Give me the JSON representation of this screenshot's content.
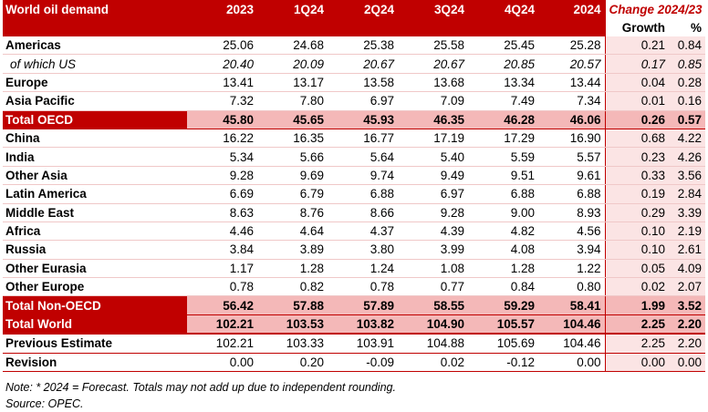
{
  "header": {
    "title": "World oil demand",
    "columns": [
      "2023",
      "1Q24",
      "2Q24",
      "3Q24",
      "4Q24",
      "2024"
    ],
    "change_title": "Change 2024/23",
    "change_sub": [
      "Growth",
      "%"
    ]
  },
  "rows": [
    {
      "label": "Americas",
      "values": [
        "25.06",
        "24.68",
        "25.38",
        "25.58",
        "25.45",
        "25.28"
      ],
      "growth": "0.21",
      "pct": "0.84"
    },
    {
      "label": "of which US",
      "values": [
        "20.40",
        "20.09",
        "20.67",
        "20.67",
        "20.85",
        "20.57"
      ],
      "growth": "0.17",
      "pct": "0.85"
    },
    {
      "label": "Europe",
      "values": [
        "13.41",
        "13.17",
        "13.58",
        "13.68",
        "13.34",
        "13.44"
      ],
      "growth": "0.04",
      "pct": "0.28"
    },
    {
      "label": "Asia Pacific",
      "values": [
        "7.32",
        "7.80",
        "6.97",
        "7.09",
        "7.49",
        "7.34"
      ],
      "growth": "0.01",
      "pct": "0.16"
    },
    {
      "label": "Total OECD",
      "values": [
        "45.80",
        "45.65",
        "45.93",
        "46.35",
        "46.28",
        "46.06"
      ],
      "growth": "0.26",
      "pct": "0.57"
    },
    {
      "label": "China",
      "values": [
        "16.22",
        "16.35",
        "16.77",
        "17.19",
        "17.29",
        "16.90"
      ],
      "growth": "0.68",
      "pct": "4.22"
    },
    {
      "label": "India",
      "values": [
        "5.34",
        "5.66",
        "5.64",
        "5.40",
        "5.59",
        "5.57"
      ],
      "growth": "0.23",
      "pct": "4.26"
    },
    {
      "label": "Other Asia",
      "values": [
        "9.28",
        "9.69",
        "9.74",
        "9.49",
        "9.51",
        "9.61"
      ],
      "growth": "0.33",
      "pct": "3.56"
    },
    {
      "label": "Latin America",
      "values": [
        "6.69",
        "6.79",
        "6.88",
        "6.97",
        "6.88",
        "6.88"
      ],
      "growth": "0.19",
      "pct": "2.84"
    },
    {
      "label": "Middle East",
      "values": [
        "8.63",
        "8.76",
        "8.66",
        "9.28",
        "9.00",
        "8.93"
      ],
      "growth": "0.29",
      "pct": "3.39"
    },
    {
      "label": "Africa",
      "values": [
        "4.46",
        "4.64",
        "4.37",
        "4.39",
        "4.82",
        "4.56"
      ],
      "growth": "0.10",
      "pct": "2.19"
    },
    {
      "label": "Russia",
      "values": [
        "3.84",
        "3.89",
        "3.80",
        "3.99",
        "4.08",
        "3.94"
      ],
      "growth": "0.10",
      "pct": "2.61"
    },
    {
      "label": "Other Eurasia",
      "values": [
        "1.17",
        "1.28",
        "1.24",
        "1.08",
        "1.28",
        "1.22"
      ],
      "growth": "0.05",
      "pct": "4.09"
    },
    {
      "label": "Other Europe",
      "values": [
        "0.78",
        "0.82",
        "0.78",
        "0.77",
        "0.84",
        "0.80"
      ],
      "growth": "0.02",
      "pct": "2.07"
    },
    {
      "label": "Total Non-OECD",
      "values": [
        "56.42",
        "57.88",
        "57.89",
        "58.55",
        "59.29",
        "58.41"
      ],
      "growth": "1.99",
      "pct": "3.52"
    },
    {
      "label": "Total World",
      "values": [
        "102.21",
        "103.53",
        "103.82",
        "104.90",
        "105.57",
        "104.46"
      ],
      "growth": "2.25",
      "pct": "2.20"
    },
    {
      "label": "Previous Estimate",
      "values": [
        "102.21",
        "103.33",
        "103.91",
        "104.88",
        "105.69",
        "104.46"
      ],
      "growth": "2.25",
      "pct": "2.20"
    },
    {
      "label": "Revision",
      "values": [
        "0.00",
        "0.20",
        "-0.09",
        "0.02",
        "-0.12",
        "0.00"
      ],
      "growth": "0.00",
      "pct": "0.00"
    }
  ],
  "notes": {
    "note": "Note: * 2024 = Forecast. Totals may not add up due to independent rounding.",
    "source": "Source: OPEC."
  },
  "colors": {
    "accent": "#c00000",
    "total_fill": "#f4b8b8",
    "change_fill": "#fbe4e4"
  }
}
